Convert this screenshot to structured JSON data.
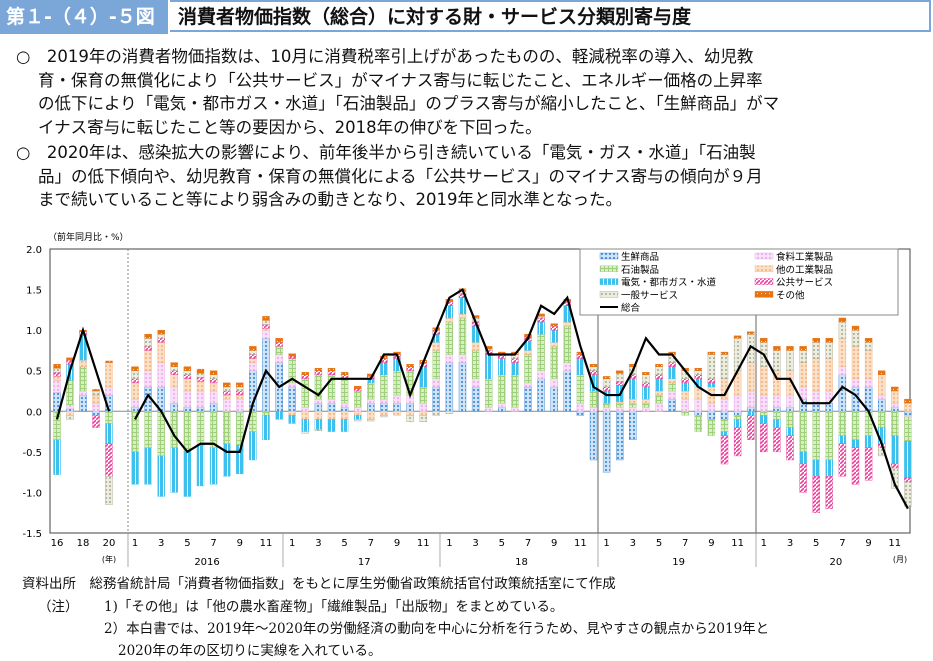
{
  "header": {
    "figure_number": "第１-（４）-５図",
    "title": "消費者物価指数（総合）に対する財・サービス分類別寄与度"
  },
  "summary": [
    {
      "bullet": "○",
      "lines": [
        "2019年の消費者物価指数は、10月に消費税率引上げがあったものの、軽減税率の導入、幼児教",
        "育・保育の無償化により「公共サービス」がマイナス寄与に転じたこと、エネルギー価格の上昇率",
        "の低下により「電気・都市ガス・水道」「石油製品」のプラス寄与が縮小したこと、「生鮮商品」がマ",
        "イナス寄与に転じたこと等の要因から、2018年の伸びを下回った。"
      ]
    },
    {
      "bullet": "○",
      "lines": [
        "2020年は、感染拡大の影響により、前年後半から引き続いている「電気・ガス・水道」「石油製",
        "品」の低下傾向や、幼児教育・保育の無償化による「公共サービス」のマイナス寄与の傾向が９月",
        "まで続いていること等により弱含みの動きとなり、2019年と同水準となった。"
      ]
    }
  ],
  "chart_data": {
    "type": "bar",
    "stacked": true,
    "unit_label": "（前年同月比・%）",
    "ylim": [
      -1.5,
      2.0
    ],
    "yticks": [
      "2.0",
      "1.5",
      "1.0",
      "0.5",
      "0.0",
      "-0.5",
      "-1.0",
      "-1.5"
    ],
    "annual_labels": [
      "16",
      "18",
      "20"
    ],
    "annual_unit": "(年)",
    "month_labels": [
      "1",
      "3",
      "5",
      "7",
      "9",
      "11"
    ],
    "year_labels": [
      "2016",
      "17",
      "18",
      "19",
      "20"
    ],
    "month_unit": "(月)",
    "legend_position": "top-right",
    "categories": [
      "16",
      "17",
      "18",
      "19",
      "20",
      "2016-1",
      "2016-2",
      "2016-3",
      "2016-4",
      "2016-5",
      "2016-6",
      "2016-7",
      "2016-8",
      "2016-9",
      "2016-10",
      "2016-11",
      "2016-12",
      "2017-1",
      "2017-2",
      "2017-3",
      "2017-4",
      "2017-5",
      "2017-6",
      "2017-7",
      "2017-8",
      "2017-9",
      "2017-10",
      "2017-11",
      "2017-12",
      "2018-1",
      "2018-2",
      "2018-3",
      "2018-4",
      "2018-5",
      "2018-6",
      "2018-7",
      "2018-8",
      "2018-9",
      "2018-10",
      "2018-11",
      "2018-12",
      "2019-1",
      "2019-2",
      "2019-3",
      "2019-4",
      "2019-5",
      "2019-6",
      "2019-7",
      "2019-8",
      "2019-9",
      "2019-10",
      "2019-11",
      "2019-12",
      "2020-1",
      "2020-2",
      "2020-3",
      "2020-4",
      "2020-5",
      "2020-6",
      "2020-7",
      "2020-8",
      "2020-9",
      "2020-10",
      "2020-11",
      "2020-12"
    ],
    "series": [
      {
        "name": "生鮮商品",
        "color": "#2f7fd0",
        "pattern": "dots",
        "values": [
          0.23,
          0.03,
          0.2,
          -0.05,
          0.2,
          0.05,
          0.3,
          0.3,
          0.1,
          0.05,
          0.05,
          0.1,
          0.0,
          -0.02,
          0.5,
          0.9,
          0.6,
          0.3,
          0.0,
          0.1,
          0.1,
          0.05,
          0.0,
          0.1,
          0.1,
          0.1,
          0.1,
          0.0,
          0.3,
          0.6,
          0.6,
          0.3,
          0.0,
          0.05,
          0.0,
          0.3,
          0.4,
          0.3,
          0.5,
          -0.05,
          -0.6,
          -0.75,
          -0.6,
          -0.35,
          0.0,
          0.0,
          0.15,
          0.0,
          -0.05,
          -0.1,
          -0.1,
          -0.05,
          0.05,
          0.0,
          0.05,
          0.05,
          0.15,
          0.1,
          0.1,
          0.45,
          0.3,
          0.3,
          0.15,
          0.05,
          -0.05
        ]
      },
      {
        "name": "食料工業製品",
        "color": "#e8a8e8",
        "pattern": "cross",
        "values": [
          0.15,
          0.05,
          0.05,
          0.1,
          0.1,
          0.1,
          0.2,
          0.3,
          0.2,
          0.2,
          0.2,
          0.15,
          0.15,
          0.15,
          0.1,
          0.1,
          0.1,
          0.05,
          0.05,
          0.05,
          0.05,
          0.05,
          0.05,
          0.05,
          0.05,
          0.1,
          0.1,
          0.1,
          0.1,
          0.1,
          0.1,
          0.1,
          0.05,
          0.05,
          0.05,
          0.05,
          0.1,
          0.1,
          0.1,
          0.1,
          0.05,
          0.05,
          0.05,
          0.05,
          0.05,
          0.1,
          0.1,
          0.15,
          0.15,
          0.1,
          0.15,
          0.2,
          0.2,
          0.2,
          0.15,
          0.15,
          0.15,
          0.15,
          0.15,
          0.1,
          0.1,
          0.1,
          0.05,
          0.05,
          -0.02
        ]
      },
      {
        "name": "石油製品",
        "color": "#9fcf7a",
        "pattern": "grid",
        "values": [
          -0.35,
          0.3,
          0.3,
          0.0,
          -0.15,
          -0.5,
          -0.45,
          -0.55,
          -0.45,
          -0.5,
          -0.42,
          -0.45,
          -0.4,
          -0.4,
          -0.25,
          -0.05,
          0.1,
          0.3,
          0.35,
          0.3,
          0.3,
          0.3,
          0.2,
          0.2,
          0.3,
          0.3,
          0.3,
          0.2,
          0.35,
          0.4,
          0.45,
          0.35,
          0.35,
          0.35,
          0.4,
          0.35,
          0.45,
          0.4,
          0.45,
          0.35,
          0.2,
          0.05,
          0.05,
          0.05,
          0.05,
          0.1,
          0.1,
          -0.05,
          -0.2,
          -0.2,
          -0.15,
          -0.05,
          0.0,
          -0.05,
          -0.1,
          -0.2,
          -0.5,
          -0.6,
          -0.6,
          -0.3,
          -0.35,
          -0.3,
          -0.2,
          -0.3,
          -0.3
        ]
      },
      {
        "name": "他の工業製品",
        "color": "#f4b07a",
        "pattern": "dots2",
        "values": [
          0.05,
          -0.05,
          0.08,
          0.1,
          0.3,
          0.2,
          0.25,
          0.25,
          0.15,
          0.15,
          0.12,
          0.1,
          0.05,
          0.05,
          0.05,
          0.02,
          0.0,
          -0.05,
          -0.1,
          -0.1,
          -0.1,
          -0.1,
          -0.05,
          -0.1,
          -0.05,
          -0.05,
          -0.05,
          -0.05,
          0.1,
          0.05,
          0.05,
          0.1,
          0.0,
          0.0,
          0.0,
          0.05,
          0.0,
          0.05,
          0.05,
          0.0,
          0.0,
          0.0,
          0.02,
          0.05,
          0.05,
          0.05,
          0.05,
          0.1,
          0.15,
          0.2,
          0.25,
          0.3,
          0.35,
          0.35,
          0.3,
          0.3,
          0.3,
          0.4,
          0.4,
          0.35,
          0.4,
          0.35,
          0.25,
          0.15,
          0.1
        ]
      },
      {
        "name": "電気・都市ガス・水道",
        "color": "#3cc0ee",
        "pattern": "vlines",
        "values": [
          -0.43,
          0.2,
          0.3,
          0.0,
          -0.25,
          -0.4,
          -0.45,
          -0.5,
          -0.55,
          -0.55,
          -0.5,
          -0.45,
          -0.4,
          -0.35,
          -0.35,
          -0.3,
          -0.1,
          -0.1,
          -0.15,
          -0.12,
          -0.15,
          -0.15,
          -0.05,
          0.05,
          0.15,
          0.15,
          0.0,
          0.25,
          0.1,
          0.15,
          0.2,
          0.2,
          0.3,
          0.2,
          0.15,
          0.12,
          0.15,
          0.15,
          0.2,
          0.2,
          0.2,
          0.15,
          0.2,
          0.25,
          0.15,
          0.15,
          0.15,
          0.1,
          0.1,
          0.05,
          -0.05,
          -0.1,
          -0.05,
          -0.1,
          -0.1,
          -0.1,
          -0.15,
          -0.2,
          -0.2,
          -0.1,
          -0.1,
          -0.15,
          -0.2,
          -0.35,
          -0.45
        ]
      },
      {
        "name": "公共サービス",
        "color": "#ee3c9c",
        "pattern": "diag",
        "values": [
          0.05,
          0.05,
          0.05,
          -0.15,
          -0.4,
          0.05,
          0.05,
          0.05,
          0.05,
          0.05,
          0.05,
          0.05,
          0.05,
          0.05,
          0.05,
          0.05,
          0.05,
          0.03,
          0.05,
          0.05,
          0.05,
          0.05,
          0.03,
          0.03,
          0.05,
          0.05,
          0.05,
          0.05,
          0.05,
          0.05,
          0.05,
          0.05,
          0.05,
          0.05,
          0.05,
          0.05,
          0.05,
          0.05,
          0.05,
          0.05,
          0.05,
          0.05,
          0.05,
          0.05,
          0.05,
          0.05,
          0.05,
          0.05,
          0.05,
          0.05,
          -0.35,
          -0.35,
          -0.3,
          -0.35,
          -0.3,
          -0.3,
          -0.35,
          -0.45,
          -0.4,
          -0.4,
          -0.45,
          -0.4,
          -0.05,
          -0.05,
          -0.05
        ]
      },
      {
        "name": "一般サービス",
        "color": "#a8a890",
        "pattern": "weave",
        "values": [
          0.05,
          -0.05,
          0.0,
          0.05,
          -0.35,
          0.1,
          0.1,
          0.05,
          0.05,
          0.05,
          0.05,
          0.05,
          0.05,
          0.05,
          0.05,
          0.05,
          0.0,
          0.0,
          -0.02,
          -0.02,
          0.0,
          0.0,
          -0.02,
          -0.02,
          -0.02,
          0.0,
          -0.08,
          -0.08,
          -0.05,
          -0.03,
          0.03,
          0.05,
          0.02,
          0.0,
          0.05,
          0.0,
          0.02,
          0.0,
          0.0,
          0.0,
          0.05,
          0.1,
          0.1,
          0.1,
          0.1,
          0.1,
          0.1,
          0.1,
          0.05,
          0.3,
          0.3,
          0.4,
          0.35,
          0.3,
          0.25,
          0.25,
          0.15,
          0.2,
          0.2,
          0.2,
          0.2,
          0.1,
          -0.1,
          -0.25,
          -0.3
        ]
      },
      {
        "name": "その他",
        "color": "#e8730f",
        "pattern": "solid-dots",
        "values": [
          0.05,
          0.03,
          0.02,
          0.02,
          0.02,
          0.05,
          0.05,
          0.05,
          0.05,
          0.05,
          0.05,
          0.05,
          0.05,
          0.05,
          0.05,
          0.05,
          0.05,
          0.03,
          0.03,
          0.03,
          0.03,
          0.03,
          0.03,
          0.03,
          0.03,
          0.03,
          0.03,
          0.03,
          0.03,
          0.03,
          0.03,
          0.03,
          0.03,
          0.03,
          0.03,
          0.03,
          0.03,
          0.03,
          0.03,
          0.03,
          0.03,
          0.03,
          0.03,
          0.03,
          0.03,
          0.03,
          0.03,
          0.03,
          0.03,
          0.03,
          0.03,
          0.03,
          0.03,
          0.05,
          0.05,
          0.05,
          0.05,
          0.05,
          0.05,
          0.05,
          0.05,
          0.05,
          0.05,
          0.05,
          0.05
        ]
      }
    ],
    "line": {
      "name": "総合",
      "color": "#000000",
      "values": [
        -0.1,
        0.5,
        1.0,
        0.5,
        0.0,
        -0.1,
        0.2,
        0.0,
        -0.3,
        -0.5,
        -0.4,
        -0.4,
        -0.5,
        -0.5,
        0.1,
        0.5,
        0.3,
        0.4,
        0.3,
        0.2,
        0.4,
        0.4,
        0.4,
        0.4,
        0.7,
        0.7,
        0.2,
        0.6,
        1.0,
        1.4,
        1.5,
        1.1,
        0.7,
        0.7,
        0.7,
        0.9,
        1.3,
        1.2,
        1.4,
        0.8,
        0.3,
        0.2,
        0.2,
        0.5,
        0.9,
        0.7,
        0.7,
        0.5,
        0.3,
        0.2,
        0.2,
        0.5,
        0.8,
        0.7,
        0.4,
        0.4,
        0.1,
        0.1,
        0.1,
        0.3,
        0.2,
        0.0,
        -0.4,
        -0.9,
        -1.2
      ]
    }
  },
  "footer": {
    "source_label": "資料出所",
    "source": "総務省統計局「消費者物価指数」をもとに厚生労働省政策統括官付政策統括室にて作成",
    "note_label": "（注）",
    "notes": [
      "1)「その他」は「他の農水畜産物」「繊維製品」「出版物」をまとめている。",
      "2）本白書では、2019年～2020年の労働経済の動向を中心に分析を行うため、見やすさの観点から2019年と",
      "2020年の年の区切りに実線を入れている。"
    ]
  }
}
